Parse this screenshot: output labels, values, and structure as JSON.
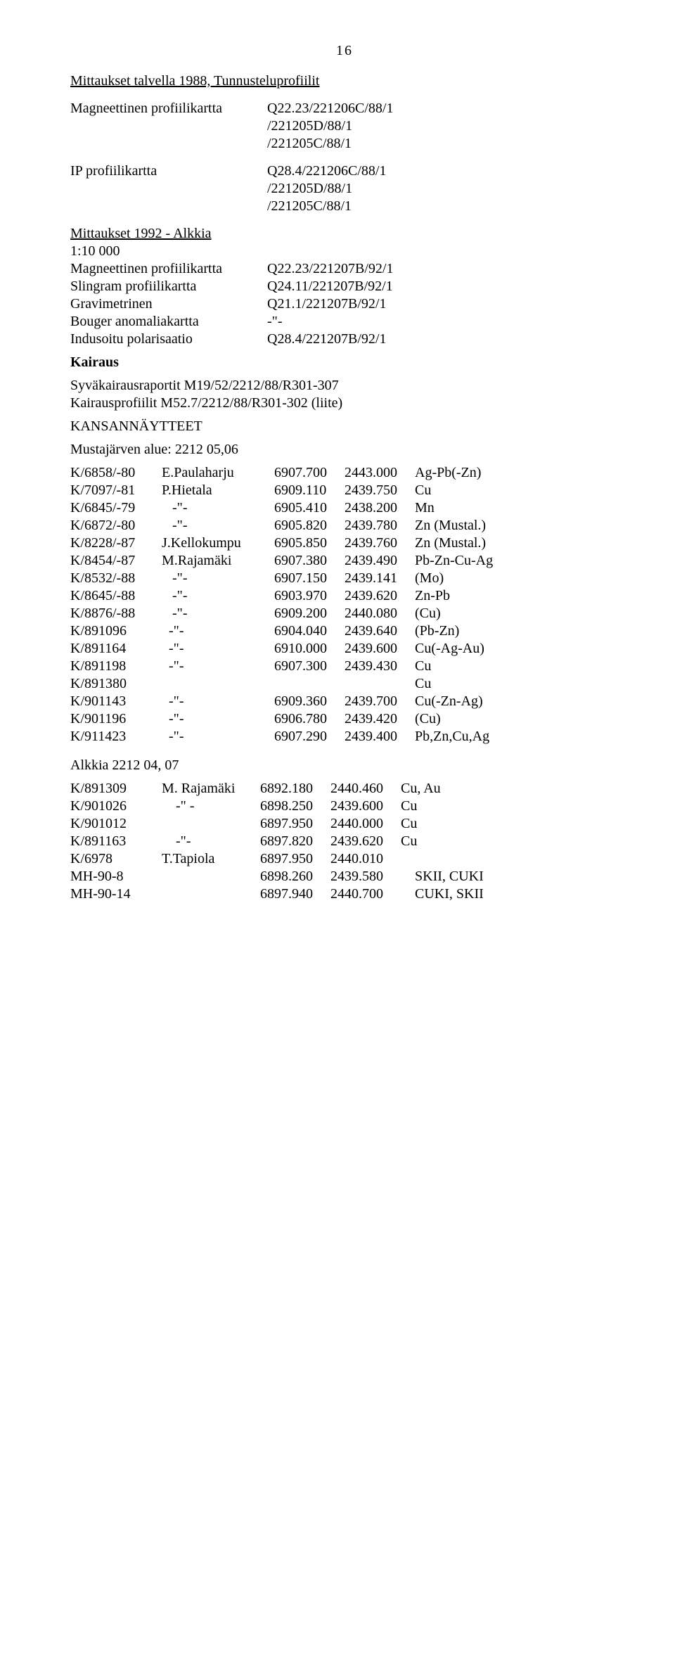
{
  "page_number": "16",
  "heading1": "Mittaukset talvella 1988, Tunnusteluprofiilit",
  "mp_label": "Magneettinen profiilikartta",
  "mp_vals": [
    "Q22.23/221206C/88/1",
    "/221205D/88/1",
    "/221205C/88/1"
  ],
  "ip_label": "IP profiilikartta",
  "ip_vals": [
    "Q28.4/221206C/88/1",
    "/221205D/88/1",
    "/221205C/88/1"
  ],
  "m1992": "Mittaukset 1992 - Alkkia",
  "scale": "1:10 000",
  "rows": [
    {
      "label": "Magneettinen profiilikartta",
      "val": "Q22.23/221207B/92/1"
    },
    {
      "label": "Slingram profiilikartta",
      "val": "Q24.11/221207B/92/1"
    },
    {
      "label": "Gravimetrinen",
      "val": "Q21.1/221207B/92/1"
    },
    {
      "label": "Bouger anomaliakartta",
      "val": "-\"-"
    },
    {
      "label": "Indusoitu polarisaatio",
      "val": "Q28.4/221207B/92/1"
    }
  ],
  "kairaus": "Kairaus",
  "syva": "Syväkairausraportit M19/52/2212/88/R301-307",
  "kprof": "Kairausprofiilit   M52.7/2212/88/R301-302 (liite)",
  "kansan": "KANSANNÄYTTEET",
  "musta": "Mustajärven alue:  2212 05,06",
  "samples": [
    {
      "c1": "K/6858/-80",
      "c2": "E.Paulaharju",
      "c3": "6907.700",
      "c4": "2443.000",
      "c5": "Ag-Pb(-Zn)"
    },
    {
      "c1": "K/7097/-81",
      "c2": "P.Hietala",
      "c3": "6909.110",
      "c4": "2439.750",
      "c5": "Cu"
    },
    {
      "c1": "K/6845/-79",
      "c2": "   -\"-",
      "c3": "6905.410",
      "c4": "2438.200",
      "c5": "Mn"
    },
    {
      "c1": "K/6872/-80",
      "c2": "   -\"-",
      "c3": "6905.820",
      "c4": "2439.780",
      "c5": "Zn (Mustal.)"
    },
    {
      "c1": "K/8228/-87",
      "c2": "J.Kellokumpu",
      "c3": "6905.850",
      "c4": "2439.760",
      "c5": "Zn (Mustal.)"
    },
    {
      "c1": "K/8454/-87",
      "c2": "M.Rajamäki",
      "c3": "6907.380",
      "c4": "2439.490",
      "c5": "Pb-Zn-Cu-Ag"
    },
    {
      "c1": "K/8532/-88",
      "c2": "   -\"-",
      "c3": "6907.150",
      "c4": "2439.141",
      "c5": "(Mo)"
    },
    {
      "c1": "K/8645/-88",
      "c2": "   -\"-",
      "c3": "6903.970",
      "c4": "2439.620",
      "c5": "Zn-Pb"
    },
    {
      "c1": "K/8876/-88",
      "c2": "   -\"-",
      "c3": "6909.200",
      "c4": "2440.080",
      "c5": "(Cu)"
    },
    {
      "c1": "K/891096",
      "c2": "  -\"-",
      "c3": "6904.040",
      "c4": "2439.640",
      "c5": "(Pb-Zn)"
    },
    {
      "c1": "K/891164",
      "c2": "  -\"-",
      "c3": "6910.000",
      "c4": "2439.600",
      "c5": "Cu(-Ag-Au)"
    },
    {
      "c1": "K/891198",
      "c2": "  -\"-",
      "c3": "6907.300",
      "c4": "2439.430",
      "c5": "Cu"
    },
    {
      "c1": "K/891380",
      "c2": "",
      "c3": "",
      "c4": "",
      "c5": "Cu"
    },
    {
      "c1": "K/901143",
      "c2": "  -\"-",
      "c3": "6909.360",
      "c4": "2439.700",
      "c5": "Cu(-Zn-Ag)"
    },
    {
      "c1": "K/901196",
      "c2": "  -\"-",
      "c3": "6906.780",
      "c4": "2439.420",
      "c5": "(Cu)"
    },
    {
      "c1": "K/911423",
      "c2": "  -\"-",
      "c3": "6907.290",
      "c4": "2439.400",
      "c5": "Pb,Zn,Cu,Ag"
    }
  ],
  "alkkia": "Alkkia 2212 04, 07",
  "samples2": [
    {
      "c1": "K/891309",
      "c2": "M. Rajamäki",
      "c3": "6892.180",
      "c4": "2440.460",
      "c5": "Cu, Au"
    },
    {
      "c1": "K/901026",
      "c2": "    -\" -",
      "c3": "6898.250",
      "c4": "2439.600",
      "c5": "Cu"
    },
    {
      "c1": "K/901012",
      "c2": "",
      "c3": "6897.950",
      "c4": "2440.000",
      "c5": "Cu"
    },
    {
      "c1": "K/891163",
      "c2": "    -\"-",
      "c3": "6897.820",
      "c4": "2439.620",
      "c5": "Cu"
    },
    {
      "c1": "K/6978",
      "c2": "T.Tapiola",
      "c3": "6897.950",
      "c4": "2440.010",
      "c5": ""
    },
    {
      "c1": "MH-90-8",
      "c2": "",
      "c3": "6898.260",
      "c4": "2439.580",
      "c5": "    SKII, CUKI"
    },
    {
      "c1": "MH-90-14",
      "c2": "",
      "c3": "6897.940",
      "c4": "2440.700",
      "c5": "    CUKI, SKII"
    }
  ]
}
